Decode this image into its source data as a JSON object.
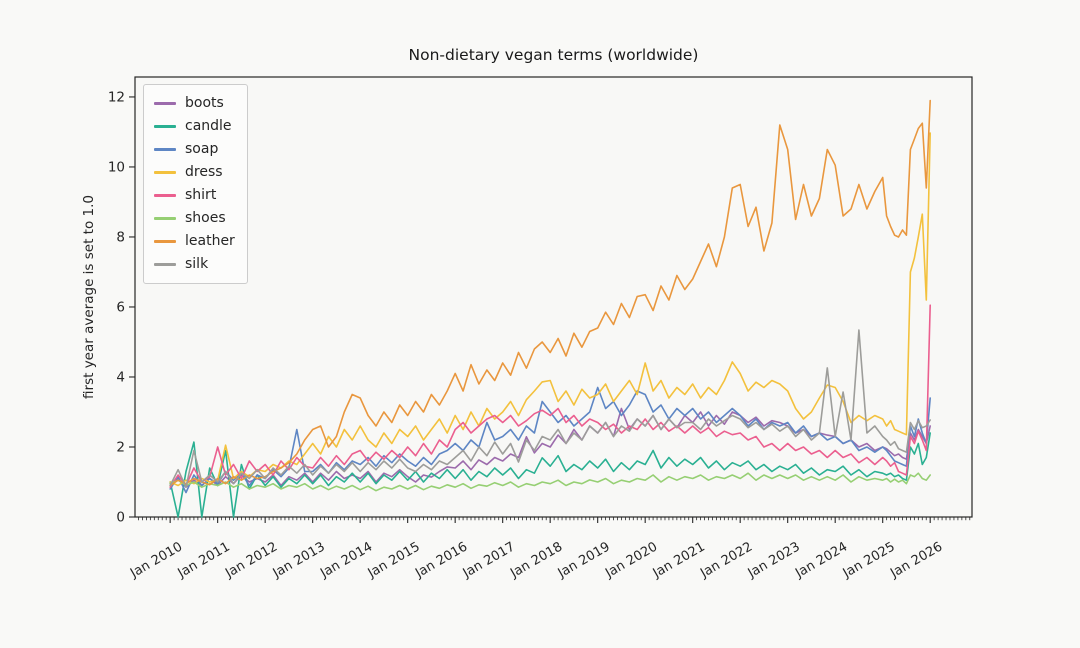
{
  "chart_data": {
    "type": "line",
    "title": "Non-dietary vegan terms (worldwide)",
    "xlabel": "",
    "ylabel": "first year average is set to 1.0",
    "legend_position": "upper left",
    "grid": false,
    "xlim": [
      2009.26,
      2026.88
    ],
    "ylim": [
      0,
      12.57
    ],
    "y_ticks": [
      0,
      2,
      4,
      6,
      8,
      10,
      12
    ],
    "x_ticks": {
      "years": [
        2010,
        2011,
        2012,
        2013,
        2014,
        2015,
        2016,
        2017,
        2018,
        2019,
        2020,
        2021,
        2022,
        2023,
        2024,
        2025,
        2026
      ],
      "labels": [
        "Jan 2010",
        "Jan 2011",
        "Jan 2012",
        "Jan 2013",
        "Jan 2014",
        "Jan 2015",
        "Jan 2016",
        "Jan 2017",
        "Jan 2018",
        "Jan 2019",
        "Jan 2020",
        "Jan 2021",
        "Jan 2022",
        "Jan 2023",
        "Jan 2024",
        "Jan 2025",
        "Jan 2026"
      ]
    },
    "x": [
      2010.0,
      2010.167,
      2010.333,
      2010.5,
      2010.667,
      2010.833,
      2011.0,
      2011.167,
      2011.333,
      2011.5,
      2011.667,
      2011.833,
      2012.0,
      2012.167,
      2012.333,
      2012.5,
      2012.667,
      2012.833,
      2013.0,
      2013.167,
      2013.333,
      2013.5,
      2013.667,
      2013.833,
      2014.0,
      2014.167,
      2014.333,
      2014.5,
      2014.667,
      2014.833,
      2015.0,
      2015.167,
      2015.333,
      2015.5,
      2015.667,
      2015.833,
      2016.0,
      2016.167,
      2016.333,
      2016.5,
      2016.667,
      2016.833,
      2017.0,
      2017.167,
      2017.333,
      2017.5,
      2017.667,
      2017.833,
      2018.0,
      2018.167,
      2018.333,
      2018.5,
      2018.667,
      2018.833,
      2019.0,
      2019.167,
      2019.333,
      2019.5,
      2019.667,
      2019.833,
      2020.0,
      2020.167,
      2020.333,
      2020.5,
      2020.667,
      2020.833,
      2021.0,
      2021.167,
      2021.333,
      2021.5,
      2021.667,
      2021.833,
      2022.0,
      2022.167,
      2022.333,
      2022.5,
      2022.667,
      2022.833,
      2023.0,
      2023.167,
      2023.333,
      2023.5,
      2023.667,
      2023.833,
      2024.0,
      2024.167,
      2024.333,
      2024.5,
      2024.667,
      2024.833,
      2025.0,
      2025.083,
      2025.167,
      2025.25,
      2025.333,
      2025.417,
      2025.5,
      2025.583,
      2025.667,
      2025.75,
      2025.833,
      2025.917,
      2026.0
    ],
    "series": [
      {
        "name": "boots",
        "color": "#9c6bac",
        "values": [
          0.95,
          1.1,
          0.85,
          1.05,
          0.9,
          1.1,
          0.9,
          1.15,
          0.95,
          1.2,
          1.0,
          1.1,
          1.0,
          1.2,
          0.9,
          1.15,
          1.05,
          1.25,
          1.0,
          1.25,
          1.05,
          1.3,
          1.1,
          1.2,
          1.1,
          1.3,
          1.0,
          1.25,
          1.15,
          1.35,
          1.15,
          1.0,
          1.2,
          1.14,
          1.3,
          1.43,
          1.4,
          1.6,
          1.35,
          1.63,
          1.5,
          1.7,
          1.6,
          1.8,
          1.7,
          2.29,
          1.83,
          2.1,
          2.0,
          2.34,
          2.1,
          2.5,
          2.2,
          2.6,
          2.4,
          2.7,
          2.3,
          3.1,
          2.5,
          2.8,
          2.6,
          2.9,
          2.5,
          2.8,
          2.55,
          2.9,
          2.7,
          3.0,
          2.6,
          2.9,
          2.65,
          3.0,
          2.9,
          2.7,
          2.85,
          2.6,
          2.75,
          2.7,
          2.6,
          2.4,
          2.5,
          2.3,
          2.4,
          2.34,
          2.3,
          2.1,
          2.2,
          2.0,
          2.1,
          1.9,
          2.0,
          1.95,
          1.85,
          1.75,
          1.8,
          1.7,
          1.65,
          2.4,
          2.2,
          2.5,
          2.3,
          2.1,
          2.6
        ]
      },
      {
        "name": "candle",
        "color": "#2ab092",
        "values": [
          1.0,
          0.0,
          1.3,
          2.14,
          0.0,
          1.4,
          0.9,
          1.9,
          0.0,
          1.5,
          0.8,
          1.2,
          0.9,
          1.15,
          0.85,
          1.1,
          0.95,
          1.2,
          0.95,
          1.2,
          0.9,
          1.15,
          1.0,
          1.25,
          1.0,
          1.25,
          0.95,
          1.2,
          1.05,
          1.3,
          1.05,
          1.3,
          1.0,
          1.25,
          1.1,
          1.35,
          1.1,
          1.35,
          1.05,
          1.3,
          1.15,
          1.4,
          1.2,
          1.4,
          1.1,
          1.35,
          1.25,
          1.69,
          1.45,
          1.75,
          1.3,
          1.5,
          1.35,
          1.6,
          1.4,
          1.65,
          1.3,
          1.55,
          1.35,
          1.6,
          1.5,
          1.9,
          1.4,
          1.7,
          1.45,
          1.65,
          1.5,
          1.7,
          1.4,
          1.6,
          1.35,
          1.55,
          1.45,
          1.6,
          1.35,
          1.5,
          1.3,
          1.45,
          1.35,
          1.5,
          1.25,
          1.4,
          1.2,
          1.35,
          1.3,
          1.45,
          1.2,
          1.35,
          1.15,
          1.3,
          1.25,
          1.2,
          1.25,
          1.15,
          1.2,
          1.1,
          1.05,
          2.0,
          1.8,
          2.1,
          1.5,
          1.7,
          2.4
        ]
      },
      {
        "name": "soap",
        "color": "#5e86c4",
        "values": [
          0.8,
          1.15,
          0.7,
          1.2,
          0.9,
          1.1,
          0.95,
          1.3,
          1.05,
          1.25,
          0.9,
          1.2,
          1.1,
          1.35,
          1.15,
          1.4,
          2.5,
          1.3,
          1.3,
          1.5,
          1.25,
          1.55,
          1.35,
          1.6,
          1.5,
          1.7,
          1.45,
          1.75,
          1.55,
          1.8,
          1.6,
          1.45,
          1.7,
          1.5,
          1.8,
          1.9,
          2.1,
          1.9,
          2.2,
          2.0,
          2.7,
          2.2,
          2.3,
          2.5,
          2.2,
          2.6,
          2.4,
          3.3,
          3.0,
          2.7,
          2.9,
          2.6,
          2.8,
          3.0,
          3.7,
          3.1,
          3.3,
          2.9,
          3.2,
          3.6,
          3.5,
          3.0,
          3.2,
          2.8,
          3.1,
          2.9,
          3.1,
          2.8,
          3.0,
          2.7,
          2.9,
          3.1,
          2.9,
          2.6,
          2.8,
          2.5,
          2.7,
          2.6,
          2.7,
          2.4,
          2.6,
          2.3,
          2.4,
          2.2,
          2.3,
          2.1,
          2.2,
          1.9,
          2.0,
          1.85,
          2.0,
          1.9,
          1.75,
          1.6,
          1.55,
          1.5,
          1.45,
          2.6,
          2.3,
          2.8,
          2.4,
          2.1,
          3.4
        ]
      },
      {
        "name": "dress",
        "color": "#f3c13d",
        "values": [
          1.0,
          0.9,
          1.05,
          0.95,
          1.1,
          1.0,
          1.05,
          2.05,
          1.1,
          1.3,
          1.15,
          1.35,
          1.3,
          1.5,
          1.4,
          1.6,
          1.5,
          1.8,
          2.1,
          1.8,
          2.3,
          2.0,
          2.5,
          2.2,
          2.6,
          2.2,
          2.0,
          2.4,
          2.1,
          2.5,
          2.3,
          2.6,
          2.2,
          2.5,
          2.8,
          2.4,
          2.9,
          2.5,
          3.0,
          2.6,
          3.1,
          2.8,
          3.0,
          3.3,
          2.9,
          3.35,
          3.6,
          3.86,
          3.9,
          3.3,
          3.6,
          3.2,
          3.65,
          3.4,
          3.5,
          3.8,
          3.3,
          3.6,
          3.9,
          3.5,
          4.4,
          3.6,
          3.9,
          3.4,
          3.7,
          3.5,
          3.8,
          3.4,
          3.7,
          3.5,
          3.9,
          4.43,
          4.1,
          3.6,
          3.85,
          3.7,
          3.9,
          3.8,
          3.6,
          3.1,
          2.8,
          3.0,
          3.4,
          3.77,
          3.7,
          3.3,
          2.7,
          2.9,
          2.75,
          2.9,
          2.8,
          2.6,
          2.75,
          2.5,
          2.45,
          2.4,
          2.35,
          7.0,
          7.4,
          8.0,
          8.65,
          6.2,
          10.97
        ]
      },
      {
        "name": "shirt",
        "color": "#eb5f8f",
        "values": [
          0.85,
          1.2,
          0.9,
          1.4,
          1.0,
          1.15,
          2.0,
          1.2,
          1.5,
          1.1,
          1.6,
          1.3,
          1.5,
          1.2,
          1.6,
          1.35,
          1.7,
          1.45,
          1.4,
          1.7,
          1.45,
          1.75,
          1.5,
          1.8,
          1.9,
          1.6,
          1.85,
          1.65,
          1.9,
          1.7,
          2.0,
          1.75,
          2.1,
          1.8,
          2.2,
          2.0,
          2.5,
          2.7,
          2.4,
          2.6,
          2.8,
          2.9,
          2.7,
          2.9,
          2.6,
          2.75,
          2.95,
          3.05,
          2.9,
          3.1,
          2.7,
          2.9,
          2.6,
          2.8,
          2.7,
          2.5,
          2.65,
          2.4,
          2.6,
          2.5,
          2.8,
          2.5,
          2.7,
          2.45,
          2.6,
          2.4,
          2.6,
          2.4,
          2.55,
          2.3,
          2.45,
          2.35,
          2.4,
          2.2,
          2.3,
          2.0,
          2.1,
          1.9,
          2.1,
          1.9,
          2.0,
          1.8,
          1.9,
          1.7,
          1.9,
          1.7,
          1.8,
          1.55,
          1.7,
          1.5,
          1.7,
          1.6,
          1.45,
          1.55,
          1.3,
          1.25,
          1.2,
          2.3,
          2.1,
          2.45,
          2.2,
          1.9,
          6.05
        ]
      },
      {
        "name": "shoes",
        "color": "#96cf73",
        "values": [
          0.95,
          1.05,
          0.9,
          1.0,
          0.85,
          0.95,
          0.9,
          1.0,
          0.85,
          0.95,
          0.8,
          0.9,
          0.85,
          0.95,
          0.8,
          0.9,
          0.85,
          0.95,
          0.8,
          0.9,
          0.78,
          0.88,
          0.8,
          0.9,
          0.78,
          0.88,
          0.75,
          0.85,
          0.8,
          0.9,
          0.8,
          0.9,
          0.78,
          0.88,
          0.82,
          0.92,
          0.85,
          0.95,
          0.82,
          0.92,
          0.88,
          0.98,
          0.9,
          1.0,
          0.85,
          0.95,
          0.9,
          1.0,
          0.95,
          1.05,
          0.9,
          1.0,
          0.95,
          1.06,
          1.0,
          1.1,
          0.95,
          1.05,
          1.0,
          1.1,
          1.05,
          1.2,
          1.0,
          1.15,
          1.05,
          1.15,
          1.1,
          1.2,
          1.05,
          1.15,
          1.1,
          1.2,
          1.1,
          1.25,
          1.05,
          1.2,
          1.1,
          1.2,
          1.1,
          1.2,
          1.05,
          1.15,
          1.05,
          1.15,
          1.05,
          1.2,
          1.0,
          1.15,
          1.05,
          1.1,
          1.05,
          1.1,
          1.0,
          1.08,
          1.0,
          1.05,
          0.95,
          1.2,
          1.15,
          1.25,
          1.1,
          1.05,
          1.2
        ]
      },
      {
        "name": "leather",
        "color": "#e9973e",
        "values": [
          0.9,
          1.05,
          0.95,
          1.1,
          1.0,
          0.92,
          1.1,
          0.95,
          1.15,
          1.05,
          1.2,
          1.1,
          1.15,
          1.3,
          1.4,
          1.55,
          1.8,
          2.2,
          2.5,
          2.6,
          2.0,
          2.3,
          3.0,
          3.5,
          3.4,
          2.9,
          2.6,
          3.0,
          2.7,
          3.2,
          2.9,
          3.3,
          3.0,
          3.5,
          3.2,
          3.6,
          4.1,
          3.6,
          4.35,
          3.8,
          4.2,
          3.9,
          4.4,
          4.05,
          4.7,
          4.25,
          4.8,
          5.0,
          4.7,
          5.1,
          4.6,
          5.25,
          4.85,
          5.3,
          5.4,
          5.85,
          5.5,
          6.1,
          5.7,
          6.3,
          6.35,
          5.9,
          6.6,
          6.2,
          6.9,
          6.5,
          6.8,
          7.3,
          7.8,
          7.15,
          8.0,
          9.4,
          9.5,
          8.3,
          8.85,
          7.6,
          8.4,
          11.2,
          10.5,
          8.5,
          9.5,
          8.6,
          9.1,
          10.5,
          10.05,
          8.6,
          8.8,
          9.5,
          8.8,
          9.3,
          9.7,
          8.6,
          8.3,
          8.05,
          8.0,
          8.2,
          8.05,
          10.5,
          10.8,
          11.1,
          11.25,
          9.4,
          11.9
        ]
      },
      {
        "name": "silk",
        "color": "#9d9d9a",
        "values": [
          0.9,
          1.35,
          0.85,
          1.9,
          1.0,
          1.2,
          1.0,
          1.3,
          0.95,
          1.25,
          1.1,
          1.35,
          1.1,
          1.4,
          1.2,
          1.45,
          1.25,
          1.5,
          1.2,
          1.45,
          1.25,
          1.5,
          1.3,
          1.55,
          1.3,
          1.55,
          1.35,
          1.6,
          1.4,
          1.65,
          1.4,
          1.3,
          1.5,
          1.35,
          1.6,
          1.5,
          1.7,
          1.9,
          1.6,
          2.0,
          1.75,
          2.14,
          1.8,
          2.1,
          1.57,
          2.2,
          1.9,
          2.3,
          2.2,
          2.5,
          2.1,
          2.4,
          2.2,
          2.6,
          2.4,
          2.7,
          2.3,
          2.6,
          2.45,
          2.8,
          2.6,
          2.9,
          2.5,
          2.8,
          2.55,
          2.7,
          2.7,
          2.5,
          2.8,
          2.6,
          2.75,
          2.9,
          2.8,
          2.55,
          2.7,
          2.5,
          2.65,
          2.45,
          2.6,
          2.3,
          2.5,
          2.2,
          2.4,
          4.26,
          2.3,
          3.57,
          2.2,
          5.34,
          2.4,
          2.6,
          2.3,
          2.2,
          2.05,
          2.15,
          1.95,
          1.9,
          1.85,
          2.7,
          2.5,
          2.75,
          2.55,
          2.6,
          2.77
        ]
      }
    ]
  }
}
